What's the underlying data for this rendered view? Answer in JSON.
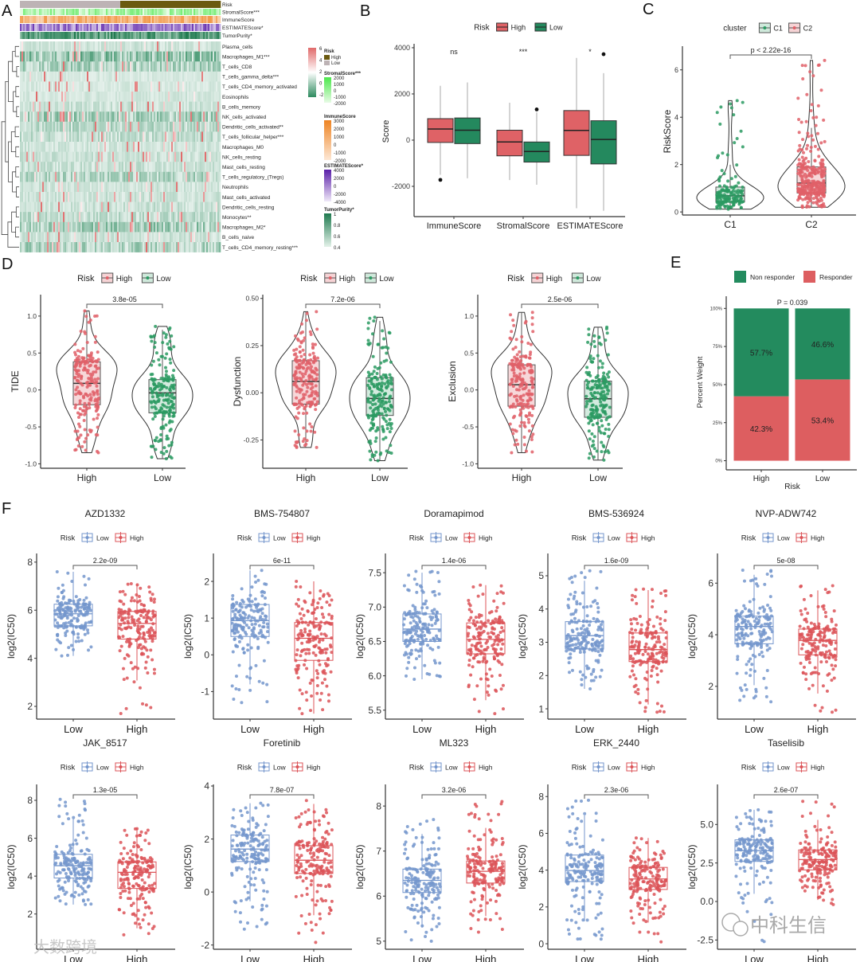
{
  "figure": {
    "panel_labels": [
      "A",
      "B",
      "C",
      "D",
      "E",
      "F"
    ],
    "watermarks": [
      "大数跨境",
      "中科生信"
    ]
  },
  "chart_data": [
    {
      "panel": "A",
      "type": "heatmap",
      "annotation_rows": [
        "Risk",
        "StromalScore***",
        "ImmuneScore",
        "ESTIMATEScore*",
        "TumorPurity*"
      ],
      "rows": [
        "Plasma_cells",
        "Macrophages_M1***",
        "T_cells_CD8",
        "T_cells_gamma_delta***",
        "T_cells_CD4_memory_activated",
        "Eosinophils",
        "B_cells_memory",
        "NK_cells_activated",
        "Dendritic_cells_activated**",
        "T_cells_follicular_helper***",
        "Macrophages_M0",
        "NK_cells_resting",
        "Mast_cells_resting",
        "T_cells_regulatory_(Tregs)",
        "Neutrophils",
        "Mast_cells_activated",
        "Dendritic_cells_resting",
        "Monocytes**",
        "Macrophages_M2*",
        "B_cells_naive",
        "T_cells_CD4_memory_resting***"
      ],
      "scale": {
        "ticks": [
          "6",
          "4",
          "2",
          "0",
          "-2"
        ],
        "colors": [
          "#e06a6a",
          "#ffffff",
          "#2e8b5f"
        ]
      },
      "legends": {
        "risk": {
          "title": "Risk",
          "levels": [
            "High",
            "Low"
          ],
          "colors": [
            "#6b5a10",
            "#bdb3b5"
          ]
        },
        "stromal": {
          "title": "StromalScore***",
          "ticks": [
            "2000",
            "1000",
            "0",
            "-1000",
            "-2000"
          ],
          "colors": [
            "#4be84b",
            "#e8fbe6"
          ]
        },
        "immune": {
          "title": "ImmuneScore",
          "ticks": [
            "3000",
            "2000",
            "1000",
            "0",
            "-1000",
            "-2000"
          ],
          "colors": [
            "#ee8423",
            "#fde8d6"
          ]
        },
        "estimate": {
          "title": "ESTIMATEScore*",
          "ticks": [
            "4000",
            "2000",
            "0",
            "-2000",
            "-4000"
          ],
          "colors": [
            "#5a1fa8",
            "#efe8f8"
          ]
        },
        "purity": {
          "title": "TumorPurity*",
          "ticks": [
            "1",
            "0.8",
            "0.6",
            "0.4"
          ],
          "colors": [
            "#1f7a4f",
            "#e4f2ea"
          ]
        }
      }
    },
    {
      "panel": "B",
      "type": "box",
      "legend_title": "Risk",
      "legend": [
        "High",
        "Low"
      ],
      "colors": {
        "High": "#df6266",
        "Low": "#24895e"
      },
      "categories": [
        "ImmuneScore",
        "StromalScore",
        "ESTIMATEScore"
      ],
      "significance": [
        "ns",
        "***",
        "*"
      ],
      "ylabel": "Score",
      "ticks": [
        "4000",
        "2000",
        "0",
        "-2000"
      ],
      "ylim": [
        -3310,
        4170
      ],
      "series": [
        {
          "name": "High",
          "stats": [
            {
              "whisker": [
                -1500,
                2350
              ],
              "box": [
                -100,
                480,
                930
              ],
              "outliers": [
                -1720
              ]
            },
            {
              "whisker": [
                -1730,
                1620
              ],
              "box": [
                -680,
                -80,
                430
              ],
              "outliers": []
            },
            {
              "whisker": [
                -2950,
                3560
              ],
              "box": [
                -660,
                420,
                1280
              ],
              "outliers": []
            }
          ]
        },
        {
          "name": "Low",
          "stats": [
            {
              "whisker": [
                -1650,
                2500
              ],
              "box": [
                -150,
                430,
                960
              ],
              "outliers": []
            },
            {
              "whisker": [
                -1930,
                1200
              ],
              "box": [
                -950,
                -490,
                -80
              ],
              "outliers": [
                1330
              ]
            },
            {
              "whisker": [
                -3060,
                2900
              ],
              "box": [
                -1030,
                30,
                840
              ],
              "outliers": [
                3720
              ]
            }
          ]
        }
      ]
    },
    {
      "panel": "C",
      "type": "violin",
      "legend_title": "cluster",
      "legend": [
        "C1",
        "C2"
      ],
      "colors": {
        "C1": "#2a9a62",
        "C2": "#e06068"
      },
      "categories": [
        "C1",
        "C2"
      ],
      "ylabel": "RiskScore",
      "ticks": [
        "6",
        "4",
        "2",
        "0"
      ],
      "ylim": [
        -0.13,
        7.0
      ],
      "pvalue": "p < 2.22e-16",
      "groups": [
        {
          "name": "C1",
          "n": 150,
          "range": [
            0.12,
            4.7
          ],
          "box": [
            0.42,
            0.68,
            1.05
          ]
        },
        {
          "name": "C2",
          "n": 300,
          "range": [
            0.2,
            6.4
          ],
          "box": [
            0.8,
            1.22,
            1.9
          ]
        }
      ]
    },
    {
      "panel": "D",
      "type": "violin",
      "legend_title": "Risk",
      "legend": [
        "High",
        "Low"
      ],
      "ylabel": "TIDE",
      "ticks": [
        "1.0",
        "0.5",
        "0.0",
        "-0.5",
        "-1.0"
      ],
      "ylim": [
        -1.06,
        1.29
      ],
      "pvalue": "3.8e-05",
      "categories": [
        "High",
        "Low"
      ],
      "groups": [
        {
          "name": "High",
          "n": 200,
          "range": [
            -0.85,
            1.07
          ],
          "box": [
            -0.2,
            0.09,
            0.38
          ]
        },
        {
          "name": "Low",
          "n": 200,
          "range": [
            -0.93,
            0.86
          ],
          "box": [
            -0.31,
            -0.04,
            0.14
          ]
        }
      ]
    },
    {
      "panel": "D",
      "type": "violin",
      "legend_title": "Risk",
      "legend": [
        "High",
        "Low"
      ],
      "ylabel": "Dysfunction",
      "ticks": [
        "0.50",
        "0.25",
        "0.00",
        "-0.25"
      ],
      "ylim": [
        -0.4,
        0.52
      ],
      "pvalue": "7.2e-06",
      "categories": [
        "High",
        "Low"
      ],
      "groups": [
        {
          "name": "High",
          "n": 200,
          "range": [
            -0.29,
            0.43
          ],
          "box": [
            -0.06,
            0.06,
            0.17
          ]
        },
        {
          "name": "Low",
          "n": 200,
          "range": [
            -0.36,
            0.4
          ],
          "box": [
            -0.12,
            -0.03,
            0.08
          ]
        }
      ]
    },
    {
      "panel": "D",
      "type": "violin",
      "legend_title": "Risk",
      "legend": [
        "High",
        "Low"
      ],
      "ylabel": "Exclusion",
      "ticks": [
        "1.0",
        "0.5",
        "0.0",
        "-0.5",
        "-1.0"
      ],
      "ylim": [
        -1.06,
        1.29
      ],
      "pvalue": "2.5e-06",
      "categories": [
        "High",
        "Low"
      ],
      "groups": [
        {
          "name": "High",
          "n": 200,
          "range": [
            -0.85,
            1.05
          ],
          "box": [
            -0.22,
            0.07,
            0.34
          ]
        },
        {
          "name": "Low",
          "n": 200,
          "range": [
            -0.95,
            0.85
          ],
          "box": [
            -0.37,
            -0.12,
            0.12
          ]
        }
      ]
    },
    {
      "panel": "E",
      "type": "bar",
      "stacked": true,
      "legend": [
        "Non responder",
        "Responder"
      ],
      "colors": {
        "Non responder": "#238b5e",
        "Responder": "#dd5e60"
      },
      "categories": [
        "High",
        "Low"
      ],
      "xlabel": "Risk",
      "ylabel": "Percent Weight",
      "ticks": [
        "100%",
        "75%",
        "50%",
        "25%",
        "0%"
      ],
      "ylim": [
        0,
        100
      ],
      "pvalue": "P = 0.039",
      "series": [
        {
          "name": "Responder",
          "values": [
            42.3,
            53.4
          ],
          "labels": [
            "42.3%",
            "53.4%"
          ]
        },
        {
          "name": "Non responder",
          "values": [
            57.7,
            46.6
          ],
          "labels": [
            "57.7%",
            "46.6%"
          ]
        }
      ]
    },
    {
      "panel": "F",
      "type": "box",
      "legend_title": "Risk",
      "legend": [
        "Low",
        "High"
      ],
      "colors": {
        "Low": "#7496cc",
        "High": "#dc5458"
      },
      "ylabel": "log2(IC50)",
      "categories": [
        "Low",
        "High"
      ],
      "drugs": [
        {
          "title": "AZD1332",
          "pvalue": "2.2e-09",
          "ylim": [
            1.47,
            8.36
          ],
          "ticks": [
            "8",
            "6",
            "4",
            "2"
          ],
          "groups": [
            {
              "name": "Low",
              "n": 180,
              "range": [
                4.1,
                7.6
              ],
              "box": [
                5.35,
                5.85,
                6.25
              ]
            },
            {
              "name": "High",
              "n": 180,
              "range": [
                1.7,
                7.1
              ],
              "box": [
                4.8,
                5.45,
                5.95
              ]
            }
          ]
        },
        {
          "title": "BMS-754807",
          "pvalue": "6e-11",
          "ylim": [
            -1.75,
            2.76
          ],
          "ticks": [
            "2",
            "1",
            "0",
            "-1"
          ],
          "groups": [
            {
              "name": "Low",
              "n": 180,
              "range": [
                -1.3,
                2.3
              ],
              "box": [
                0.5,
                0.93,
                1.37
              ]
            },
            {
              "name": "High",
              "n": 180,
              "range": [
                -1.6,
                2.0
              ],
              "box": [
                -0.15,
                0.45,
                0.88
              ]
            }
          ]
        },
        {
          "title": "Doramapimod",
          "pvalue": "1.4e-06",
          "ylim": [
            5.37,
            7.78
          ],
          "ticks": [
            "7.5",
            "7.0",
            "6.5",
            "6.0",
            "5.5"
          ],
          "groups": [
            {
              "name": "Low",
              "n": 180,
              "range": [
                5.95,
                7.52
              ],
              "box": [
                6.5,
                6.68,
                6.9
              ]
            },
            {
              "name": "High",
              "n": 180,
              "range": [
                5.45,
                7.32
              ],
              "box": [
                6.32,
                6.53,
                6.77
              ]
            }
          ]
        },
        {
          "title": "BMS-536924",
          "pvalue": "1.6e-09",
          "ylim": [
            0.69,
            5.67
          ],
          "ticks": [
            "5",
            "4",
            "3",
            "2",
            "1"
          ],
          "groups": [
            {
              "name": "Low",
              "n": 180,
              "range": [
                1.6,
                5.15
              ],
              "box": [
                2.8,
                3.2,
                3.62
              ]
            },
            {
              "name": "High",
              "n": 180,
              "range": [
                0.9,
                4.6
              ],
              "box": [
                2.42,
                2.78,
                3.28
              ]
            }
          ]
        },
        {
          "title": "NVP-ADW742",
          "pvalue": "5e-08",
          "ylim": [
            0.73,
            7.15
          ],
          "ticks": [
            "6",
            "4",
            "2"
          ],
          "groups": [
            {
              "name": "Low",
              "n": 180,
              "range": [
                1.4,
                6.5
              ],
              "box": [
                3.65,
                4.32,
                4.72
              ]
            },
            {
              "name": "High",
              "n": 180,
              "range": [
                1.0,
                5.9
              ],
              "box": [
                3.22,
                3.78,
                4.22
              ]
            }
          ]
        },
        {
          "title": "JAK_8517",
          "pvalue": "1.3e-05",
          "ylim": [
            0.14,
            8.84
          ],
          "ticks": [
            "8",
            "6",
            "4",
            "2"
          ],
          "groups": [
            {
              "name": "Low",
              "n": 180,
              "range": [
                2.5,
                8.05
              ],
              "box": [
                3.9,
                4.55,
                5.15
              ]
            },
            {
              "name": "High",
              "n": 180,
              "range": [
                0.9,
                6.5
              ],
              "box": [
                3.35,
                4.2,
                4.75
              ]
            }
          ]
        },
        {
          "title": "Foretinib",
          "pvalue": "7.8e-07",
          "ylim": [
            -2.16,
            4.06
          ],
          "ticks": [
            "4",
            "2",
            "0",
            "-2"
          ],
          "groups": [
            {
              "name": "Low",
              "n": 180,
              "range": [
                -1.4,
                3.35
              ],
              "box": [
                1.15,
                1.62,
                2.15
              ]
            },
            {
              "name": "High",
              "n": 180,
              "range": [
                -1.9,
                3.45
              ],
              "box": [
                0.7,
                1.2,
                1.75
              ]
            }
          ]
        },
        {
          "title": "ML323",
          "pvalue": "3.2e-06",
          "ylim": [
            4.82,
            8.48
          ],
          "ticks": [
            "8",
            "7",
            "6",
            "5"
          ],
          "groups": [
            {
              "name": "Low",
              "n": 180,
              "range": [
                5.0,
                7.7
              ],
              "box": [
                6.08,
                6.35,
                6.6
              ]
            },
            {
              "name": "High",
              "n": 180,
              "range": [
                5.2,
                8.1
              ],
              "box": [
                6.29,
                6.55,
                6.78
              ]
            }
          ]
        },
        {
          "title": "ERK_2440",
          "pvalue": "2.3e-06",
          "ylim": [
            -0.3,
            8.66
          ],
          "ticks": [
            "8",
            "6",
            "4",
            "2",
            "0"
          ],
          "groups": [
            {
              "name": "Low",
              "n": 180,
              "range": [
                0.25,
                7.8
              ],
              "box": [
                3.38,
                3.98,
                4.82
              ]
            },
            {
              "name": "High",
              "n": 180,
              "range": [
                0.1,
                5.75
              ],
              "box": [
                2.95,
                3.52,
                4.15
              ]
            }
          ]
        },
        {
          "title": "Taselisib",
          "pvalue": "2.6e-07",
          "ylim": [
            -3.1,
            7.6
          ],
          "ticks": [
            "5.0",
            "2.5",
            "0.0",
            "-2.5"
          ],
          "groups": [
            {
              "name": "Low",
              "n": 180,
              "range": [
                -2.6,
                5.95
              ],
              "box": [
                2.6,
                3.3,
                4.0
              ]
            },
            {
              "name": "High",
              "n": 180,
              "range": [
                -0.2,
                6.5
              ],
              "box": [
                2.05,
                2.72,
                3.35
              ]
            }
          ]
        }
      ]
    }
  ]
}
